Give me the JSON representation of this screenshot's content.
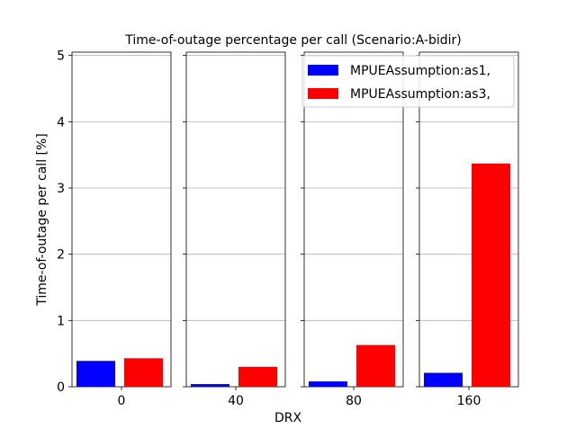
{
  "chart_data": {
    "type": "bar",
    "title": "Time-of-outage percentage per call (Scenario:A-bidir)",
    "xlabel": "DRX",
    "ylabel": "Time-of-outage per call [%]",
    "ylim": [
      0,
      5.05
    ],
    "yticks": [
      "0",
      "1",
      "2",
      "3",
      "4",
      "5"
    ],
    "grid": "y",
    "legend": "top-right",
    "categories": [
      "0",
      "40",
      "80",
      "160"
    ],
    "series": [
      {
        "name": "MPUEAssumption:as1,",
        "color": "#0000ff",
        "values": [
          0.39,
          0.04,
          0.08,
          0.21
        ]
      },
      {
        "name": "MPUEAssumption:as3,",
        "color": "#ff0000",
        "values": [
          0.43,
          0.3,
          0.63,
          3.37
        ]
      }
    ]
  }
}
